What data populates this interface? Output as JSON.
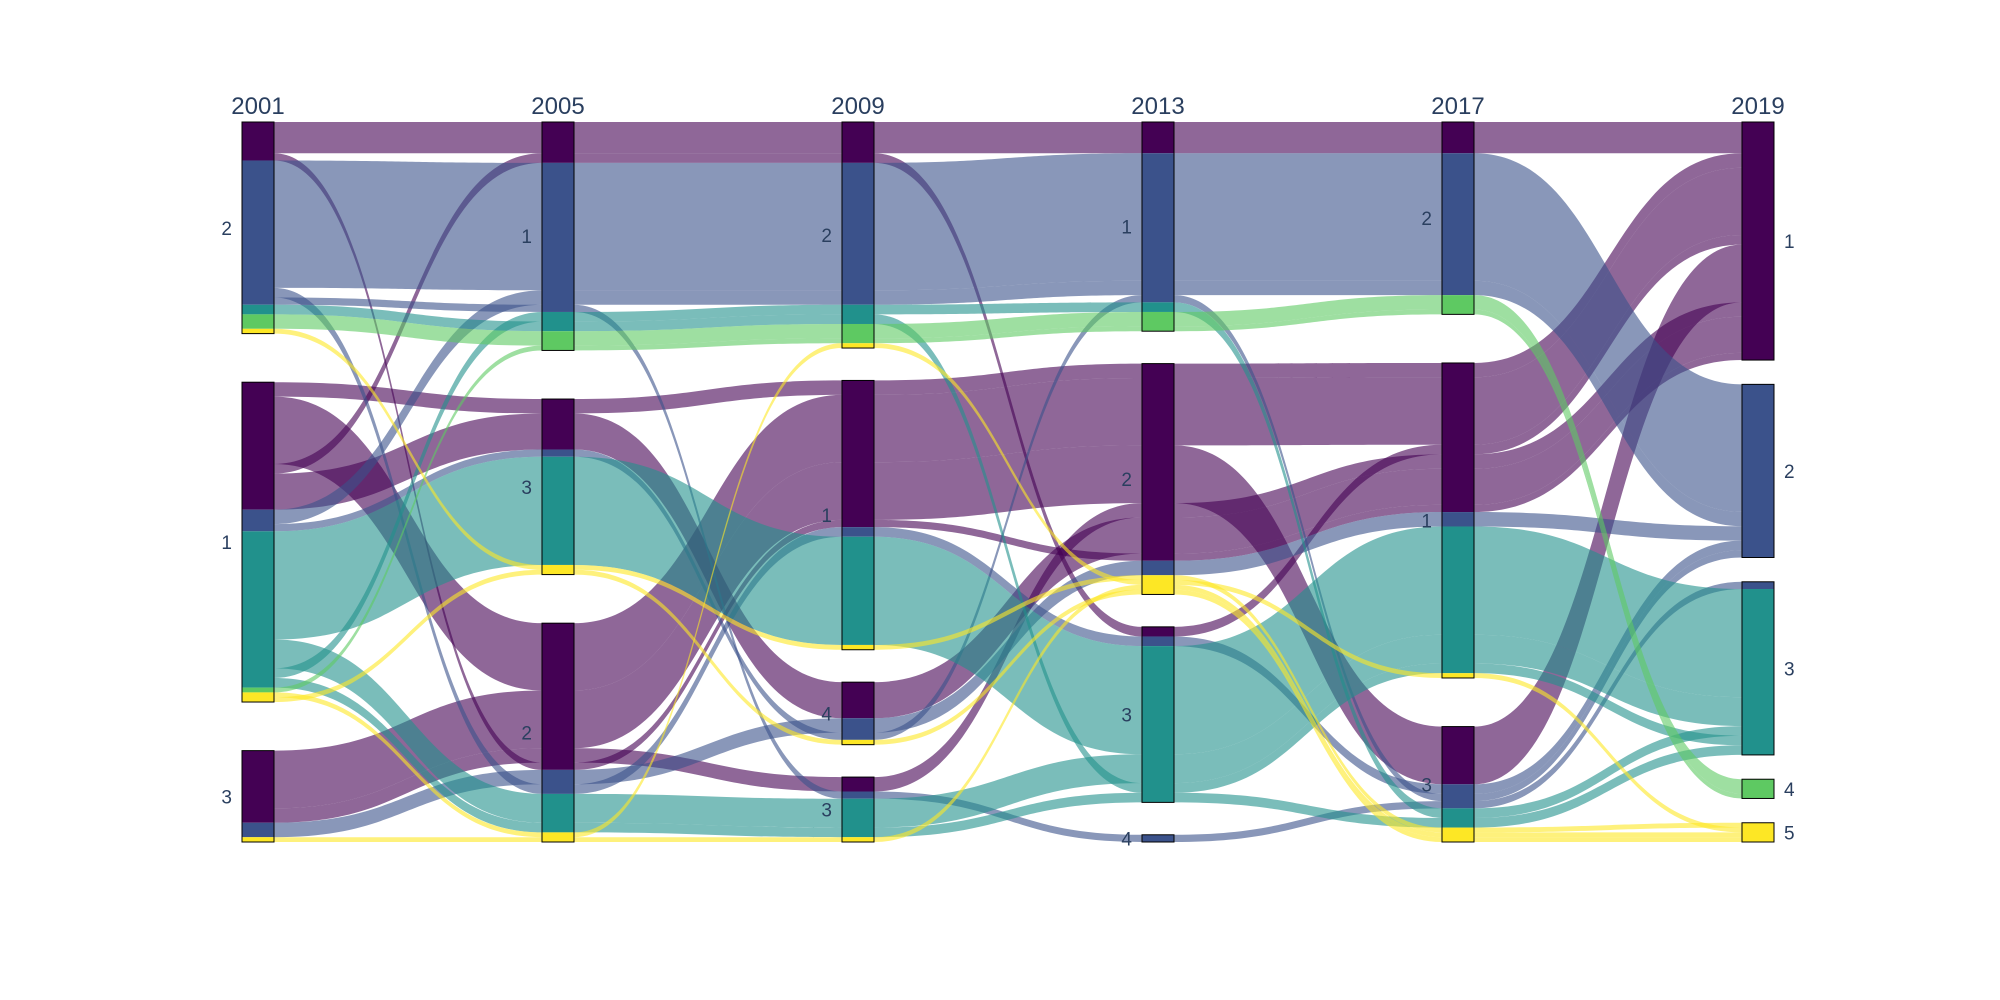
{
  "chart_data": {
    "type": "parallel_categories",
    "dimensions": [
      {
        "label": "2001",
        "categories": [
          {
            "label": "2",
            "share": 0.297
          },
          {
            "label": "1",
            "share": 0.409
          },
          {
            "label": "3",
            "share": 0.143
          }
        ]
      },
      {
        "label": "2005",
        "categories": [
          {
            "label": "1",
            "share": 0.297
          },
          {
            "label": "3",
            "share": 0.317
          },
          {
            "label": "2",
            "share": 0.237
          }
        ]
      },
      {
        "label": "2009",
        "categories": [
          {
            "label": "2",
            "share": 0.3
          },
          {
            "label": "1",
            "share": 0.253
          },
          {
            "label": "4",
            "share": 0.093
          },
          {
            "label": "3",
            "share": 0.163
          }
        ]
      },
      {
        "label": "2013",
        "categories": [
          {
            "label": "1",
            "share": 0.313
          },
          {
            "label": "2",
            "share": 0.343
          },
          {
            "label": "3",
            "share": 0.197
          },
          {
            "label": "4",
            "share": 0.01
          }
        ]
      },
      {
        "label": "2017",
        "categories": [
          {
            "label": "2",
            "share": 0.303
          },
          {
            "label": "1",
            "share": 0.42
          },
          {
            "label": "3",
            "share": 0.137
          }
        ]
      },
      {
        "label": "2019",
        "categories": [
          {
            "label": "1",
            "share": 0.32
          },
          {
            "label": "2",
            "share": 0.253
          },
          {
            "label": "3",
            "share": 0.237
          },
          {
            "label": "4",
            "share": 0.027
          },
          {
            "label": "5",
            "share": 0.027
          }
        ]
      }
    ],
    "color_groups": [
      {
        "id": "1",
        "color": "#440154"
      },
      {
        "id": "2",
        "color": "#3b528b"
      },
      {
        "id": "3",
        "color": "#21918c"
      },
      {
        "id": "4",
        "color": "#5ec962"
      },
      {
        "id": "5",
        "color": "#fde725"
      }
    ],
    "paths": [
      {
        "group": "1",
        "route": [
          "2",
          "1",
          "2",
          "1",
          "2",
          "1"
        ],
        "count": 13
      },
      {
        "group": "1",
        "route": [
          "1",
          "3",
          "1",
          "2",
          "1",
          "1"
        ],
        "count": 6
      },
      {
        "group": "1",
        "route": [
          "1",
          "2",
          "1",
          "2",
          "1",
          "1"
        ],
        "count": 28
      },
      {
        "group": "1",
        "route": [
          "1",
          "1",
          "2",
          "3",
          "1",
          "1"
        ],
        "count": 4
      },
      {
        "group": "1",
        "route": [
          "3",
          "2",
          "1",
          "2",
          "3",
          "1"
        ],
        "count": 24
      },
      {
        "group": "1",
        "route": [
          "3",
          "2",
          "3",
          "2",
          "1",
          "1"
        ],
        "count": 6
      },
      {
        "group": "1",
        "route": [
          "1",
          "3",
          "4",
          "2",
          "1",
          "1"
        ],
        "count": 15
      },
      {
        "group": "1",
        "route": [
          "2",
          "2",
          "1",
          "2",
          "1",
          "1"
        ],
        "count": 3
      },
      {
        "group": "2",
        "route": [
          "2",
          "1",
          "2",
          "1",
          "2",
          "2"
        ],
        "count": 53
      },
      {
        "group": "2",
        "route": [
          "1",
          "1",
          "2",
          "1",
          "2",
          "2"
        ],
        "count": 6
      },
      {
        "group": "2",
        "route": [
          "3",
          "2",
          "4",
          "2",
          "1",
          "2"
        ],
        "count": 6
      },
      {
        "group": "2",
        "route": [
          "2",
          "2",
          "1",
          "3",
          "3",
          "2"
        ],
        "count": 4
      },
      {
        "group": "2",
        "route": [
          "1",
          "3",
          "4",
          "1",
          "3",
          "2"
        ],
        "count": 3
      },
      {
        "group": "2",
        "route": [
          "2",
          "1",
          "3",
          "4",
          "3",
          "3"
        ],
        "count": 3
      },
      {
        "group": "3",
        "route": [
          "1",
          "3",
          "1",
          "3",
          "1",
          "3"
        ],
        "count": 45
      },
      {
        "group": "3",
        "route": [
          "1",
          "2",
          "3",
          "3",
          "1",
          "3"
        ],
        "count": 12
      },
      {
        "group": "3",
        "route": [
          "1",
          "1",
          "2",
          "1",
          "3",
          "3"
        ],
        "count": 4
      },
      {
        "group": "3",
        "route": [
          "2",
          "1",
          "2",
          "3",
          "1",
          "3"
        ],
        "count": 4
      },
      {
        "group": "3",
        "route": [
          "1",
          "2",
          "3",
          "3",
          "3",
          "3"
        ],
        "count": 4
      },
      {
        "group": "4",
        "route": [
          "2",
          "1",
          "2",
          "1",
          "2",
          "4"
        ],
        "count": 6
      },
      {
        "group": "4",
        "route": [
          "1",
          "1",
          "2",
          "1",
          "2",
          "4"
        ],
        "count": 2
      },
      {
        "group": "5",
        "route": [
          "2",
          "3",
          "1",
          "2",
          "3",
          "5"
        ],
        "count": 2
      },
      {
        "group": "5",
        "route": [
          "1",
          "2",
          "2",
          "2",
          "1",
          "5"
        ],
        "count": 2
      },
      {
        "group": "5",
        "route": [
          "3",
          "2",
          "3",
          "2",
          "3",
          "5"
        ],
        "count": 2
      },
      {
        "group": "5",
        "route": [
          "1",
          "3",
          "4",
          "2",
          "3",
          "5"
        ],
        "count": 2
      }
    ]
  }
}
